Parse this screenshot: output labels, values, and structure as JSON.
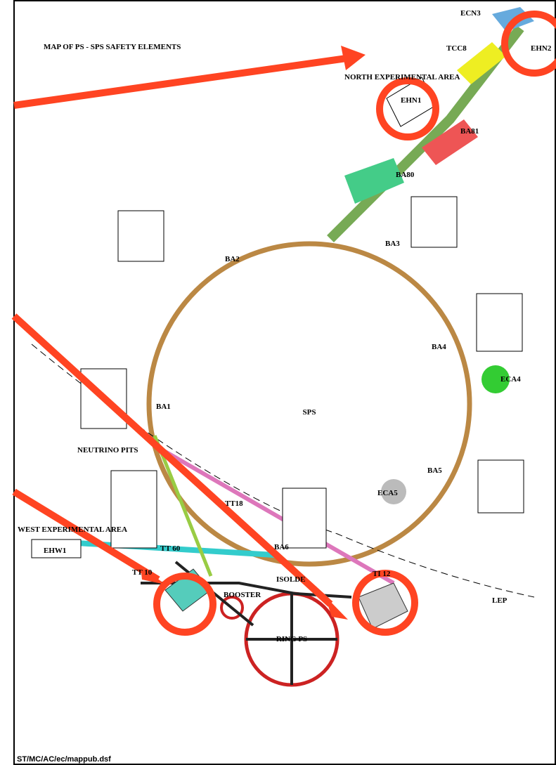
{
  "header": {
    "title": "MAP OF PS - SPS SAFETY ELEMENTS"
  },
  "rings": {
    "sps": "SPS",
    "lep": "LEP",
    "ps": "RING PS",
    "booster": "BOOSTER"
  },
  "areas": {
    "ecn3": "ECN3",
    "tcc8": "TCC8",
    "ehn2": "EHN2",
    "ehn1": "EHN1",
    "ba81": "BA81",
    "ba80": "BA80",
    "north": "NORTH EXPERIMENTAL AREA",
    "ba2": "BA2",
    "ba3": "BA3",
    "ba4": "BA4",
    "ecx4": "ECA4",
    "ba1": "BA1",
    "ba5": "BA5",
    "eca5": "ECA5",
    "ba6": "BA6",
    "neutrino": "NEUTRINO PITS",
    "west": "WEST EXPERIMENTAL AREA",
    "ehw1": "EHW1",
    "isolde": "ISOLDE"
  },
  "lines": {
    "tt60": "TT 60",
    "tt10": "TT 10",
    "tt18": "TT18",
    "ti12": "TI 12"
  },
  "footer": {
    "file": "ST/MC/AC/ec/mappub.dsf"
  }
}
